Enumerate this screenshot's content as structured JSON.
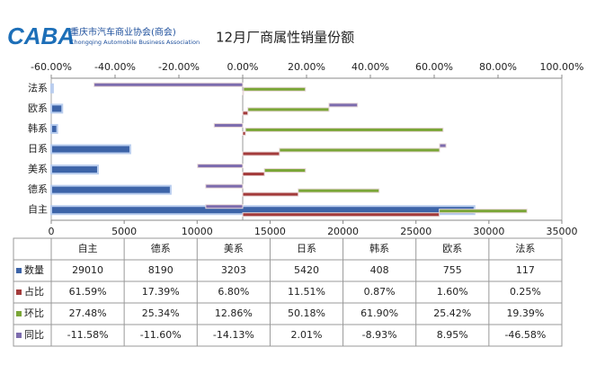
{
  "header": {
    "logo": "CABA",
    "org_name": "重庆市汽车商业协会(商会)",
    "org_name_en": "Chongqing Automobile Business Association"
  },
  "chart_data": {
    "type": "bar",
    "title": "12月厂商属性销量份额",
    "categories": [
      "自主",
      "德系",
      "美系",
      "日系",
      "韩系",
      "欧系",
      "法系"
    ],
    "series": [
      {
        "name": "数量",
        "color": "#3d64a8",
        "axis": "x",
        "values": [
          29010,
          8190,
          3203,
          5420,
          408,
          755,
          117
        ]
      },
      {
        "name": "占比",
        "color": "#a33b3b",
        "axis": "x2",
        "values": [
          61.59,
          17.39,
          6.8,
          11.51,
          0.87,
          1.6,
          0.25
        ],
        "value_labels": [
          "61.59%",
          "17.39%",
          "6.80%",
          "11.51%",
          "0.87%",
          "1.60%",
          "0.25%"
        ]
      },
      {
        "name": "环比",
        "color": "#7aa637",
        "axis": "x2",
        "values": [
          27.48,
          25.34,
          12.86,
          50.18,
          61.9,
          25.42,
          19.39
        ],
        "value_labels": [
          "27.48%",
          "25.34%",
          "12.86%",
          "50.18%",
          "61.90%",
          "25.42%",
          "19.39%"
        ]
      },
      {
        "name": "同比",
        "color": "#7d6cae",
        "axis": "x2",
        "values": [
          -11.58,
          -11.6,
          -14.13,
          2.01,
          -8.93,
          8.95,
          -46.58
        ],
        "value_labels": [
          "-11.58%",
          "-11.60%",
          "-14.13%",
          "2.01%",
          "-8.93%",
          "8.95%",
          "-46.58%"
        ]
      }
    ],
    "stacked": true,
    "xlim": [
      0,
      35000
    ],
    "xticks": [
      0,
      5000,
      10000,
      15000,
      20000,
      25000,
      30000,
      35000
    ],
    "x2lim": [
      -60,
      100
    ],
    "x2ticks": [
      {
        "value": -60,
        "label": "-60.00%"
      },
      {
        "value": -40,
        "label": "-40.00%"
      },
      {
        "value": -20,
        "label": "-20.00%"
      },
      {
        "value": 0,
        "label": "0.00%"
      },
      {
        "value": 20,
        "label": "20.00%"
      },
      {
        "value": 40,
        "label": "40.00%"
      },
      {
        "value": 60,
        "label": "60.00%"
      },
      {
        "value": 80,
        "label": "80.00%"
      },
      {
        "value": 100,
        "label": "100.00%"
      }
    ]
  }
}
